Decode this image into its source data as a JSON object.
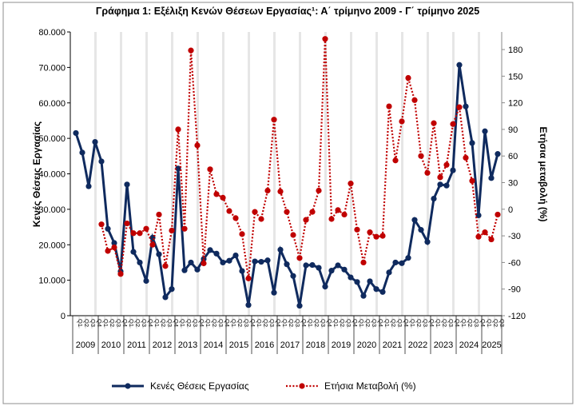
{
  "chart_data": {
    "type": "line",
    "title": "Γράφημα 1: Εξέλιξη Κενών Θέσεων Εργασίας¹: Α΄ τρίμηνο 2009 - Γ΄ τρίμηνο 2025",
    "ylabel": "Κενές Θέσεις Εργασίας",
    "y2label": "Ετήσια μεταβολή (%)",
    "ylim": [
      0,
      80000
    ],
    "y2lim": [
      -120,
      180
    ],
    "yticks": [
      "0",
      "10.000",
      "20.000",
      "30.000",
      "40.000",
      "50.000",
      "60.000",
      "70.000",
      "80.000"
    ],
    "y2ticks": [
      "-120",
      "-90",
      "-60",
      "-30",
      "0",
      "30",
      "60",
      "90",
      "120",
      "150",
      "180"
    ],
    "quarters": [
      "Q1",
      "Q2",
      "Q3",
      "Q4"
    ],
    "years": [
      "2009",
      "2010",
      "2011",
      "2012",
      "2013",
      "2014",
      "2015",
      "2016",
      "2017",
      "2018",
      "2019",
      "2020",
      "2021",
      "2022",
      "2023",
      "2024",
      "2025"
    ],
    "legend_position": "bottom",
    "series": [
      {
        "name": "Κενές Θέσεις Εργασίας",
        "axis": "left",
        "color": "#0f2a5e",
        "style": "solid",
        "values": [
          51500,
          46000,
          36500,
          49000,
          43500,
          24500,
          20500,
          12500,
          37000,
          18000,
          15000,
          9800,
          22000,
          17300,
          5200,
          7500,
          41500,
          12800,
          15000,
          13000,
          16000,
          18500,
          17500,
          15000,
          15500,
          17000,
          12600,
          3000,
          15300,
          15200,
          15600,
          6500,
          18600,
          14500,
          11200,
          2800,
          14200,
          14300,
          13500,
          8200,
          12700,
          14200,
          13000,
          10800,
          9500,
          5600,
          9700,
          7500,
          6700,
          12200,
          15000,
          14800,
          16300,
          27000,
          24200,
          20800,
          33000,
          37000,
          36700,
          41000,
          70700,
          59000,
          48700,
          28300,
          52000,
          38800,
          45600
        ]
      },
      {
        "name": "Ετήσια Μεταβολή (%)",
        "axis": "right",
        "color": "#c00000",
        "style": "dotted",
        "values": [
          null,
          null,
          null,
          null,
          -17,
          -47,
          -43,
          -73,
          -16,
          -27,
          -27,
          -22,
          -40,
          -6,
          -64,
          -24,
          90,
          -22,
          179,
          72,
          -61,
          45,
          17,
          13,
          -2,
          -10,
          -28,
          -78,
          -3,
          -11,
          21,
          101,
          20,
          -3,
          -29,
          -55,
          -12,
          -3,
          21,
          192,
          -11,
          -1,
          -6,
          29,
          -23,
          -60,
          -26,
          -31,
          -30,
          116,
          55,
          99,
          148,
          123,
          60,
          41,
          97,
          36,
          50,
          96,
          115,
          58,
          32,
          -31,
          -26,
          -34,
          -6
        ]
      }
    ]
  }
}
